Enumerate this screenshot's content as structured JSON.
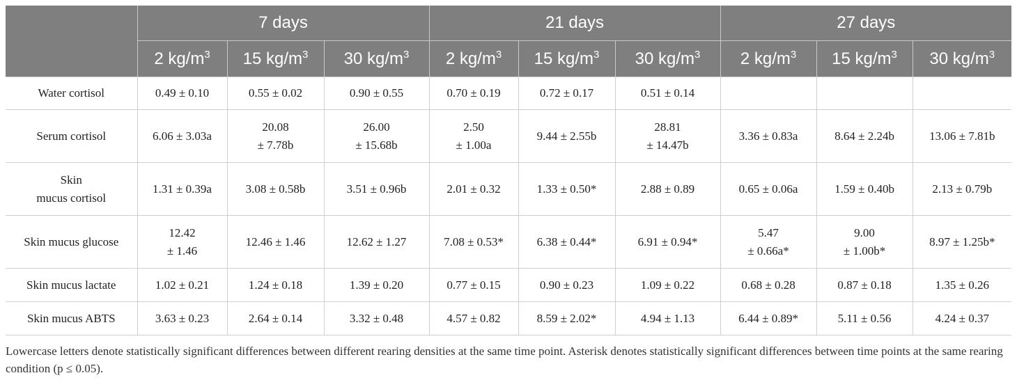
{
  "header": {
    "groups": [
      "7 days",
      "21 days",
      "27 days"
    ],
    "densities": [
      "2 kg/m",
      "15 kg/m",
      "30 kg/m",
      "2 kg/m",
      "15 kg/m",
      "30 kg/m",
      "2 kg/m",
      "15 kg/m",
      "30 kg/m"
    ],
    "density_superscript": "3"
  },
  "rows": [
    {
      "label": [
        "Water cortisol"
      ],
      "cells": [
        [
          "0.49 ± 0.10"
        ],
        [
          "0.55 ± 0.02"
        ],
        [
          "0.90 ± 0.55"
        ],
        [
          "0.70 ± 0.19"
        ],
        [
          "0.72 ± 0.17"
        ],
        [
          "0.51 ± 0.14"
        ],
        [
          ""
        ],
        [
          ""
        ],
        [
          ""
        ]
      ]
    },
    {
      "label": [
        "Serum cortisol"
      ],
      "cells": [
        [
          "6.06 ± 3.03a"
        ],
        [
          "20.08",
          "± 7.78b"
        ],
        [
          "26.00",
          "± 15.68b"
        ],
        [
          "2.50",
          "± 1.00a"
        ],
        [
          "9.44 ± 2.55b"
        ],
        [
          "28.81",
          "± 14.47b"
        ],
        [
          "3.36 ± 0.83a"
        ],
        [
          "8.64 ± 2.24b"
        ],
        [
          "13.06 ± 7.81b"
        ]
      ]
    },
    {
      "label": [
        "Skin",
        "mucus cortisol"
      ],
      "cells": [
        [
          "1.31 ± 0.39a"
        ],
        [
          "3.08 ± 0.58b"
        ],
        [
          "3.51 ± 0.96b"
        ],
        [
          "2.01 ± 0.32"
        ],
        [
          "1.33 ± 0.50*"
        ],
        [
          "2.88 ± 0.89"
        ],
        [
          "0.65 ± 0.06a"
        ],
        [
          "1.59 ± 0.40b"
        ],
        [
          "2.13 ± 0.79b"
        ]
      ]
    },
    {
      "label": [
        "Skin mucus glucose"
      ],
      "cells": [
        [
          "12.42",
          "± 1.46"
        ],
        [
          "12.46 ± 1.46"
        ],
        [
          "12.62 ± 1.27"
        ],
        [
          "7.08 ± 0.53*"
        ],
        [
          "6.38 ± 0.44*"
        ],
        [
          "6.91 ± 0.94*"
        ],
        [
          "5.47",
          "± 0.66a*"
        ],
        [
          "9.00",
          "± 1.00b*"
        ],
        [
          "8.97 ± 1.25b*"
        ]
      ]
    },
    {
      "label": [
        "Skin mucus lactate"
      ],
      "cells": [
        [
          "1.02 ± 0.21"
        ],
        [
          "1.24 ± 0.18"
        ],
        [
          "1.39 ± 0.20"
        ],
        [
          "0.77 ± 0.15"
        ],
        [
          "0.90 ± 0.23"
        ],
        [
          "1.09 ± 0.22"
        ],
        [
          "0.68 ± 0.28"
        ],
        [
          "0.87 ± 0.18"
        ],
        [
          "1.35 ± 0.26"
        ]
      ]
    },
    {
      "label": [
        "Skin mucus ABTS"
      ],
      "cells": [
        [
          "3.63 ± 0.23"
        ],
        [
          "2.64 ± 0.14"
        ],
        [
          "3.32 ± 0.48"
        ],
        [
          "4.57 ± 0.82"
        ],
        [
          "8.59 ± 2.02*"
        ],
        [
          "4.94 ± 1.13"
        ],
        [
          "6.44 ± 0.89*"
        ],
        [
          "5.11 ± 0.56"
        ],
        [
          "4.24 ± 0.37"
        ]
      ]
    }
  ],
  "footnote": "Lowercase letters denote statistically significant differences between different rearing densities at the same time point. Asterisk denotes statistically significant differences between time points at the same rearing condition (p ≤ 0.05)."
}
